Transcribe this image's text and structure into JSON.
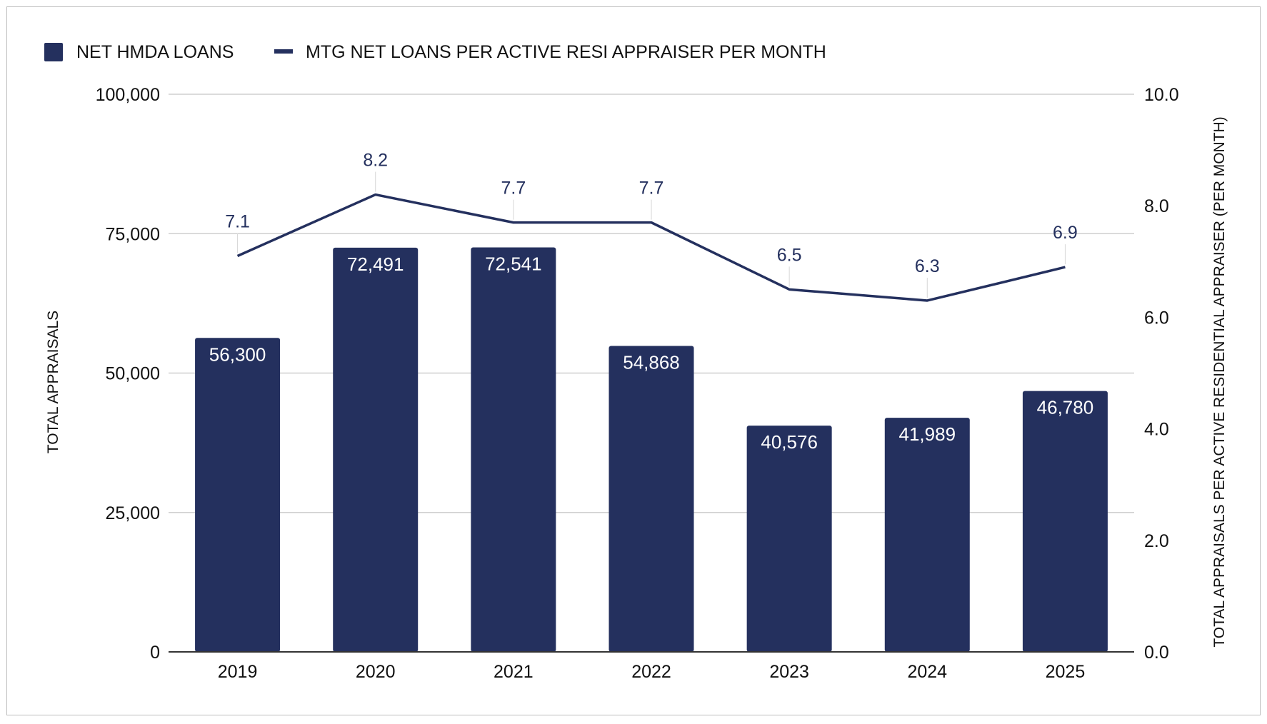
{
  "chart_data": {
    "type": "bar",
    "categories": [
      "2019",
      "2020",
      "2021",
      "2022",
      "2023",
      "2024",
      "2025"
    ],
    "series": [
      {
        "name": "NET HMDA LOANS",
        "type": "bar",
        "axis": "left",
        "values": [
          56300,
          72491,
          72541,
          54868,
          40576,
          41989,
          46780
        ],
        "labels": [
          "56,300",
          "72,491",
          "72,541",
          "54,868",
          "40,576",
          "41,989",
          "46,780"
        ]
      },
      {
        "name": "MTG NET LOANS PER ACTIVE RESI APPRAISER PER MONTH",
        "type": "line",
        "axis": "right",
        "values": [
          7.1,
          8.2,
          7.7,
          7.7,
          6.5,
          6.3,
          6.9
        ],
        "labels": [
          "7.1",
          "8.2",
          "7.7",
          "7.7",
          "6.5",
          "6.3",
          "6.9"
        ]
      }
    ],
    "ylabel": "TOTAL APPRAISALS",
    "y2label": "TOTAL APPRAISALS PER ACTIVE RESIDENTIAL APPRAISER (PER MONTH)",
    "ylim": [
      0,
      100000
    ],
    "y2lim": [
      0,
      10
    ],
    "yticks": [
      "0",
      "25,000",
      "50,000",
      "75,000",
      "100,000"
    ],
    "y2ticks": [
      "0.0",
      "2.0",
      "4.0",
      "6.0",
      "8.0",
      "10.0"
    ],
    "grid": true,
    "legend_position": "top-left",
    "colors": {
      "bar": "#24305e",
      "line": "#24305e",
      "grid": "#cfcfcf",
      "axis": "#333333"
    }
  }
}
